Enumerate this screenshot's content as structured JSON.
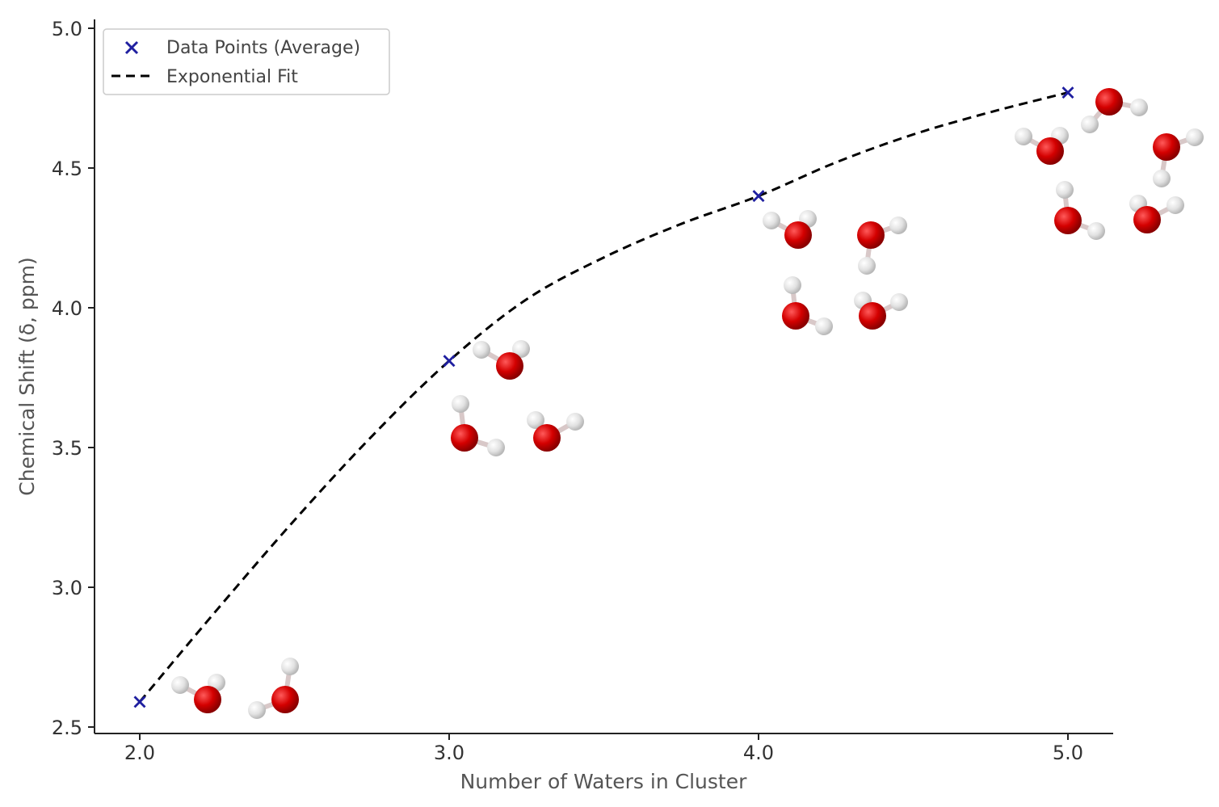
{
  "chart_data": {
    "type": "scatter",
    "title": "",
    "xlabel": "Number of Waters in Cluster",
    "ylabel": "Chemical Shift (δ, ppm)",
    "xlim": [
      1.85,
      5.15
    ],
    "ylim": [
      2.47,
      5.02
    ],
    "xticks": [
      2.0,
      3.0,
      4.0,
      5.0
    ],
    "xtick_labels": [
      "2.0",
      "3.0",
      "4.0",
      "5.0"
    ],
    "yticks": [
      2.5,
      3.0,
      3.5,
      4.0,
      4.5,
      5.0
    ],
    "ytick_labels": [
      "2.5",
      "3.0",
      "3.5",
      "4.0",
      "4.5",
      "5.0"
    ],
    "grid": false,
    "legend_position": "top-left",
    "series": [
      {
        "name": "Data Points (Average)",
        "kind": "scatter",
        "marker": "x",
        "color": "#1f1fa0",
        "x": [
          2.0,
          3.0,
          4.0,
          5.0
        ],
        "y": [
          2.59,
          3.81,
          4.4,
          4.77
        ]
      },
      {
        "name": "Exponential Fit",
        "kind": "line",
        "style": "dashed",
        "color": "#000000",
        "x": [
          2.0,
          2.25,
          2.5,
          2.75,
          3.0,
          3.25,
          3.5,
          3.75,
          4.0,
          4.25,
          4.5,
          4.75,
          5.0
        ],
        "y": [
          2.59,
          2.92,
          3.24,
          3.54,
          3.81,
          4.03,
          4.18,
          4.3,
          4.4,
          4.52,
          4.62,
          4.7,
          4.77
        ]
      }
    ]
  },
  "colors": {
    "oxygen": "#cc0000",
    "hydrogen": "#dcdcdc"
  }
}
